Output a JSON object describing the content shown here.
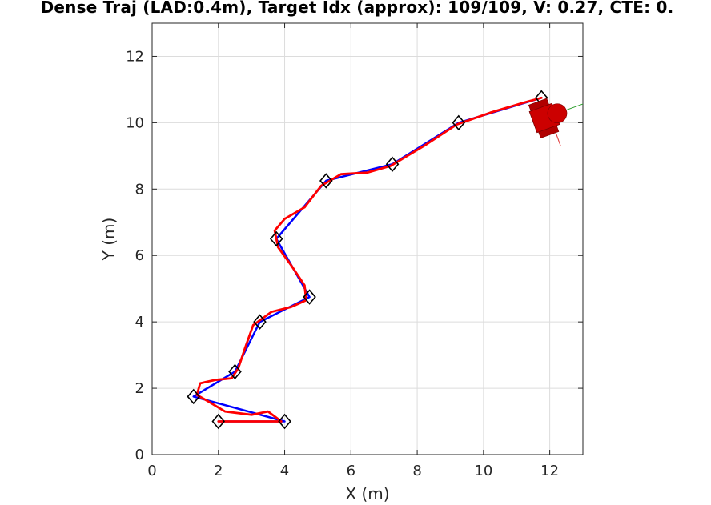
{
  "chart_data": {
    "type": "line",
    "title": "Dense Traj (LAD:0.4m), Target Idx (approx): 109/109, V: 0.27, CTE: 0.",
    "xlabel": "X (m)",
    "ylabel": "Y (m)",
    "xlim": [
      0,
      13
    ],
    "ylim": [
      0,
      13
    ],
    "xticks": [
      0,
      2,
      4,
      6,
      8,
      10,
      12
    ],
    "yticks": [
      0,
      2,
      4,
      6,
      8,
      10,
      12
    ],
    "grid": true,
    "series": [
      {
        "role": "reference path",
        "color": "#0000ff",
        "x": [
          2,
          4,
          1.25,
          2.5,
          3.25,
          4.75,
          3.75,
          5.25,
          7.25,
          9.25,
          11.75
        ],
        "y": [
          1,
          1,
          1.75,
          2.5,
          4,
          4.75,
          6.5,
          8.25,
          8.75,
          10,
          10.75
        ]
      },
      {
        "role": "driven path",
        "color": "#ff0000",
        "x": [
          2.0,
          3.0,
          3.9,
          3.5,
          3.0,
          2.2,
          1.7,
          1.35,
          1.45,
          1.9,
          2.4,
          2.6,
          2.8,
          3.05,
          3.6,
          4.2,
          4.65,
          4.6,
          4.2,
          3.8,
          3.7,
          4.0,
          4.6,
          5.1,
          5.7,
          6.5,
          7.2,
          8.2,
          9.2,
          10.2,
          11.2,
          11.75
        ],
        "y": [
          1.0,
          1.0,
          1.0,
          1.3,
          1.2,
          1.3,
          1.6,
          1.8,
          2.15,
          2.25,
          2.3,
          2.6,
          3.2,
          3.9,
          4.3,
          4.45,
          4.65,
          5.1,
          5.7,
          6.25,
          6.75,
          7.1,
          7.45,
          8.1,
          8.45,
          8.5,
          8.7,
          9.3,
          9.95,
          10.3,
          10.6,
          10.75
        ]
      }
    ],
    "waypoints": {
      "marker": "diamond",
      "color": "#000000",
      "x": [
        2,
        4,
        1.25,
        2.5,
        3.25,
        4.75,
        3.75,
        5.25,
        7.25,
        9.25,
        11.75
      ],
      "y": [
        1,
        1,
        1.75,
        2.5,
        4,
        4.75,
        6.5,
        8.25,
        8.75,
        10,
        10.75
      ]
    },
    "robot": {
      "color": "#cc0000",
      "x": 12.0,
      "y": 10.2,
      "heading_deg": -70
    }
  }
}
